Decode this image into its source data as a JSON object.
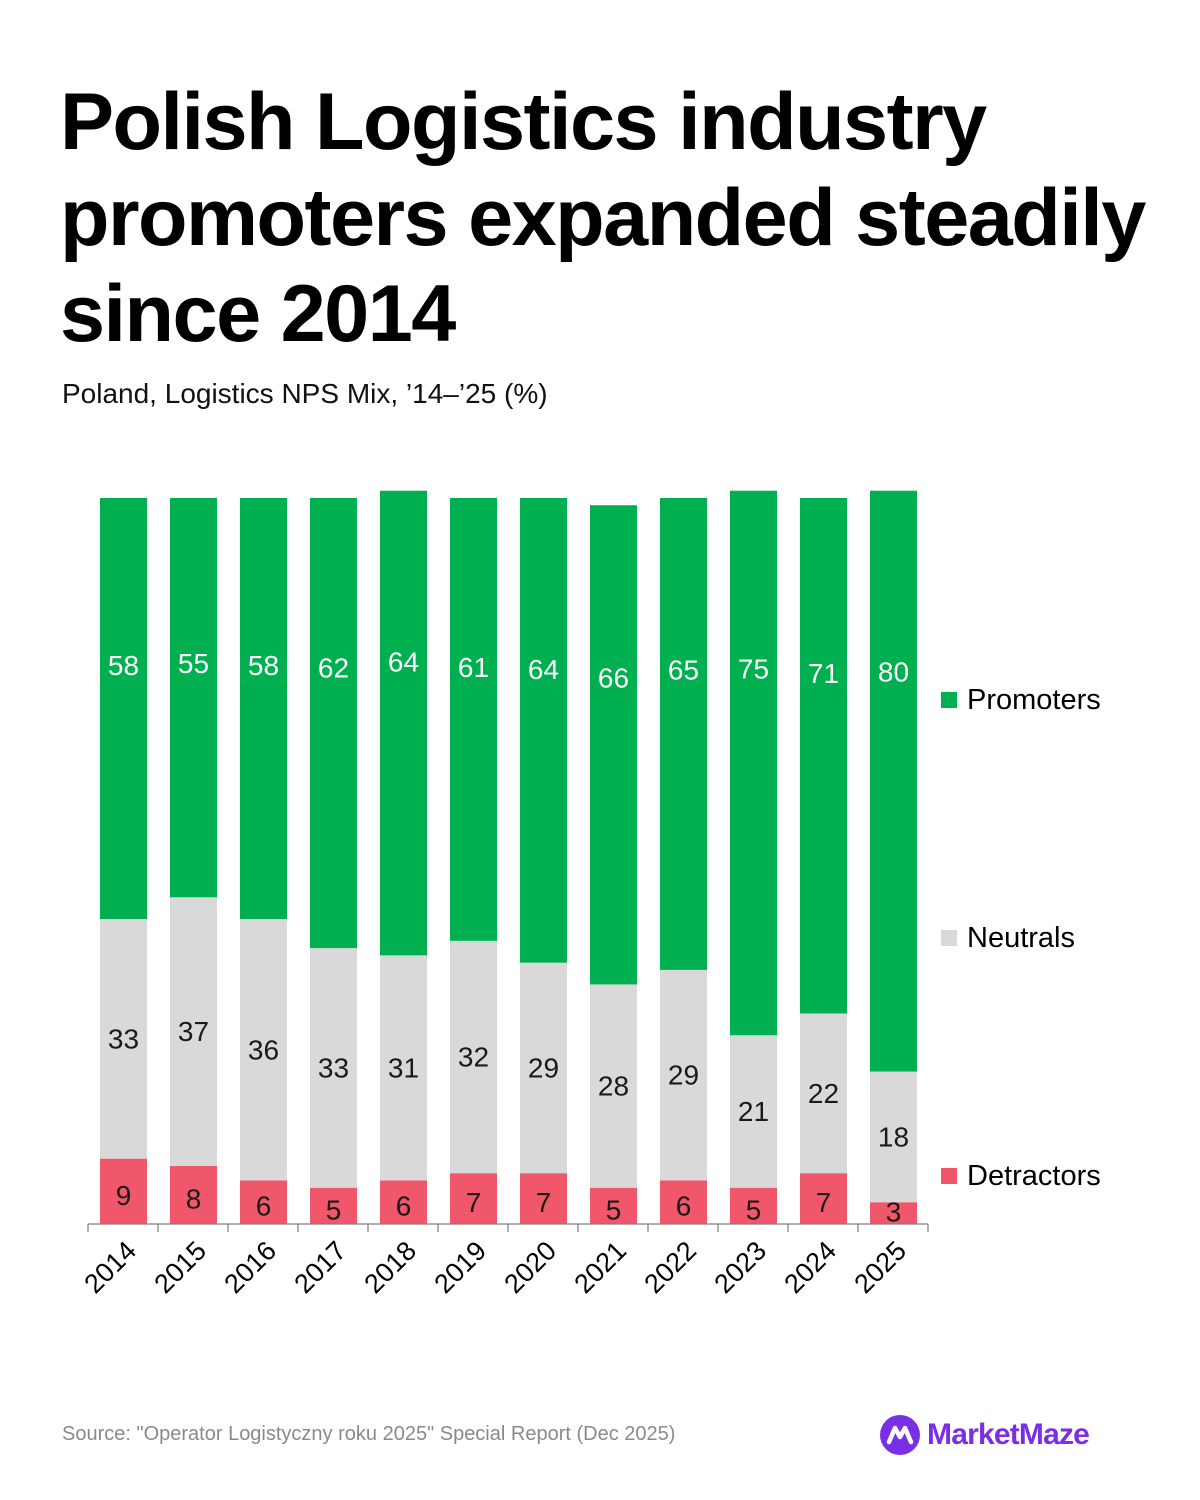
{
  "header": {
    "title": "Polish Logistics industry promoters expanded steadily since 2014",
    "subtitle": "Poland, Logistics NPS Mix, ’14–’25 (%)"
  },
  "footer": {
    "source": "Source: \"Operator Logistyczny roku 2025\" Special Report (Dec 2025)",
    "brand": "MarketMaze",
    "brand_icon": "marketmaze-logo-icon"
  },
  "colors": {
    "promoters": "#00b050",
    "neutrals": "#d9d9d9",
    "detractors": "#f0576a",
    "brand": "#7a2ee6"
  },
  "chart_data": {
    "type": "bar",
    "stacked": true,
    "title": "Polish Logistics industry promoters expanded steadily since 2014",
    "subtitle": "Poland, Logistics NPS Mix, ’14–’25 (%)",
    "categories": [
      "2014",
      "2015",
      "2016",
      "2017",
      "2018",
      "2019",
      "2020",
      "2021",
      "2022",
      "2023",
      "2024",
      "2025"
    ],
    "series": [
      {
        "name": "Detractors",
        "values": [
          9,
          8,
          6,
          5,
          6,
          7,
          7,
          5,
          6,
          5,
          7,
          3
        ]
      },
      {
        "name": "Neutrals",
        "values": [
          33,
          37,
          36,
          33,
          31,
          32,
          29,
          28,
          29,
          21,
          22,
          18
        ]
      },
      {
        "name": "Promoters",
        "values": [
          58,
          55,
          58,
          62,
          64,
          61,
          64,
          66,
          65,
          75,
          71,
          80
        ]
      }
    ],
    "ylim": [
      0,
      100
    ],
    "xlabel": "",
    "ylabel": "",
    "grid": false,
    "legend": "right"
  }
}
